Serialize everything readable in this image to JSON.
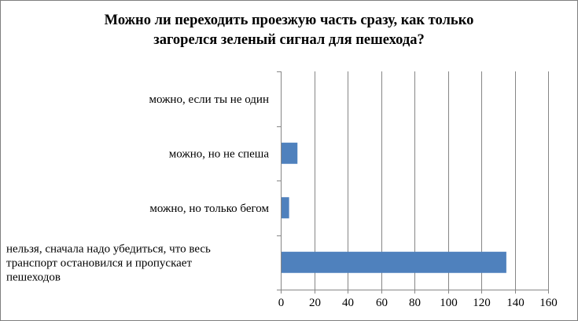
{
  "chart_data": {
    "type": "bar",
    "orientation": "horizontal",
    "title_lines": [
      "Можно ли переходить проезжую часть сразу, как только",
      "загорелся зеленый сигнал для пешехода?"
    ],
    "categories": [
      "можно, если ты не один",
      "можно, но не спеша",
      "можно, но только бегом",
      "нельзя, сначала надо убедиться, что весь транспорт остановился и пропускает пешеходов"
    ],
    "category_label_lines": [
      [
        "можно, если ты не один"
      ],
      [
        "можно, но не спеша"
      ],
      [
        "можно, но только бегом"
      ],
      [
        "нельзя, сначала надо убедиться, что весь",
        "транспорт остановился и пропускает",
        "пешеходов"
      ]
    ],
    "values": [
      0,
      10,
      5,
      135
    ],
    "xlim": [
      0,
      160
    ],
    "xticks": [
      "0",
      "20",
      "40",
      "60",
      "80",
      "100",
      "120",
      "140",
      "160"
    ],
    "grid": true,
    "legend": "none",
    "colors": {
      "bar": "#4f81bd",
      "grid": "#868686",
      "axis": "#868686"
    }
  }
}
